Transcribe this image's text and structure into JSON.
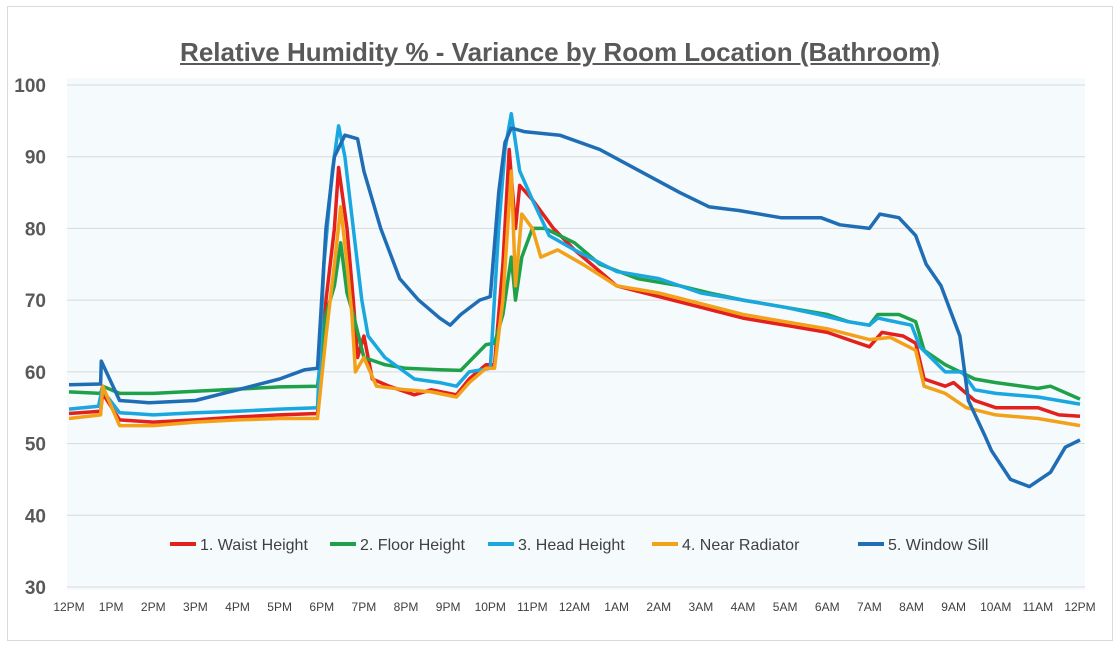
{
  "chart_data": {
    "type": "line",
    "title": "Relative Humidity % - Variance by Room Location (Bathroom)",
    "xlabel": "",
    "ylabel": "",
    "ylim": [
      30,
      100
    ],
    "yticks": [
      30,
      40,
      50,
      60,
      70,
      80,
      90,
      100
    ],
    "xticks": [
      "12PM",
      "1PM",
      "2PM",
      "3PM",
      "4PM",
      "5PM",
      "6PM",
      "7PM",
      "8PM",
      "9PM",
      "10PM",
      "11PM",
      "12AM",
      "1AM",
      "2AM",
      "3AM",
      "4AM",
      "5AM",
      "6AM",
      "7AM",
      "8AM",
      "9AM",
      "10AM",
      "11AM",
      "12PM"
    ],
    "grid": true,
    "legend_position": "bottom-inside",
    "series": [
      {
        "name": "1. Waist Height",
        "color": "#e3201b",
        "points": [
          [
            "12:00",
            54.2
          ],
          [
            "12:45",
            54.5
          ],
          [
            "12:48",
            57
          ],
          [
            "13:12",
            53.3
          ],
          [
            "14:00",
            53
          ],
          [
            "15:00",
            53.3
          ],
          [
            "16:00",
            53.7
          ],
          [
            "17:00",
            54
          ],
          [
            "17:54",
            54.2
          ],
          [
            "18:06",
            70
          ],
          [
            "18:18",
            80
          ],
          [
            "18:24",
            88.5
          ],
          [
            "18:36",
            80
          ],
          [
            "18:45",
            70
          ],
          [
            "18:51",
            62
          ],
          [
            "19:00",
            65
          ],
          [
            "19:12",
            59
          ],
          [
            "19:36",
            58
          ],
          [
            "20:12",
            56.8
          ],
          [
            "20:36",
            57.5
          ],
          [
            "21:12",
            56.8
          ],
          [
            "21:30",
            59
          ],
          [
            "21:54",
            61
          ],
          [
            "22:06",
            61
          ],
          [
            "22:18",
            75
          ],
          [
            "22:27",
            91
          ],
          [
            "22:36",
            80
          ],
          [
            "22:42",
            86
          ],
          [
            "23:00",
            84
          ],
          [
            "23:30",
            80
          ],
          [
            "00:00",
            77
          ],
          [
            "01:00",
            72
          ],
          [
            "02:00",
            70.5
          ],
          [
            "03:00",
            69
          ],
          [
            "04:00",
            67.5
          ],
          [
            "05:00",
            66.5
          ],
          [
            "06:00",
            65.5
          ],
          [
            "06:30",
            64.5
          ],
          [
            "07:00",
            63.5
          ],
          [
            "07:18",
            65.5
          ],
          [
            "07:48",
            65
          ],
          [
            "08:06",
            64
          ],
          [
            "08:18",
            59
          ],
          [
            "08:48",
            58
          ],
          [
            "09:00",
            58.5
          ],
          [
            "09:30",
            56
          ],
          [
            "10:00",
            55
          ],
          [
            "11:00",
            55
          ],
          [
            "11:30",
            54
          ],
          [
            "12:00",
            53.8
          ]
        ]
      },
      {
        "name": "2. Floor Height",
        "color": "#1fa14a",
        "points": [
          [
            "12:00",
            57.2
          ],
          [
            "12:45",
            57
          ],
          [
            "12:48",
            58
          ],
          [
            "13:12",
            57
          ],
          [
            "14:00",
            57
          ],
          [
            "15:00",
            57.3
          ],
          [
            "16:00",
            57.6
          ],
          [
            "17:00",
            57.9
          ],
          [
            "17:54",
            58
          ],
          [
            "18:06",
            68
          ],
          [
            "18:18",
            72
          ],
          [
            "18:27",
            78
          ],
          [
            "18:36",
            71
          ],
          [
            "18:45",
            68
          ],
          [
            "19:00",
            62
          ],
          [
            "19:30",
            61
          ],
          [
            "20:00",
            60.5
          ],
          [
            "20:48",
            60.3
          ],
          [
            "21:18",
            60.2
          ],
          [
            "21:36",
            62
          ],
          [
            "21:54",
            63.8
          ],
          [
            "22:06",
            64
          ],
          [
            "22:18",
            68
          ],
          [
            "22:30",
            76
          ],
          [
            "22:36",
            70
          ],
          [
            "22:45",
            76
          ],
          [
            "23:00",
            80
          ],
          [
            "23:18",
            80
          ],
          [
            "00:00",
            78
          ],
          [
            "00:36",
            75
          ],
          [
            "01:30",
            73
          ],
          [
            "02:30",
            72
          ],
          [
            "03:12",
            71
          ],
          [
            "04:00",
            70
          ],
          [
            "05:00",
            69
          ],
          [
            "06:00",
            68
          ],
          [
            "06:30",
            67
          ],
          [
            "07:00",
            66.5
          ],
          [
            "07:12",
            68
          ],
          [
            "07:42",
            68
          ],
          [
            "08:06",
            67
          ],
          [
            "08:18",
            63
          ],
          [
            "08:48",
            61
          ],
          [
            "09:30",
            59
          ],
          [
            "10:00",
            58.5
          ],
          [
            "11:00",
            57.7
          ],
          [
            "11:18",
            58
          ],
          [
            "12:00",
            56.2
          ]
        ]
      },
      {
        "name": "3. Head Height",
        "color": "#1aa7e0",
        "points": [
          [
            "12:00",
            54.8
          ],
          [
            "12:42",
            55.2
          ],
          [
            "12:47",
            57.5
          ],
          [
            "13:12",
            54.3
          ],
          [
            "14:00",
            54
          ],
          [
            "15:00",
            54.3
          ],
          [
            "16:00",
            54.5
          ],
          [
            "17:00",
            54.8
          ],
          [
            "17:54",
            55
          ],
          [
            "18:03",
            75
          ],
          [
            "18:15",
            88
          ],
          [
            "18:24",
            94.3
          ],
          [
            "18:33",
            90
          ],
          [
            "18:45",
            80
          ],
          [
            "18:57",
            70
          ],
          [
            "19:06",
            65
          ],
          [
            "19:30",
            62
          ],
          [
            "20:12",
            59
          ],
          [
            "20:48",
            58.5
          ],
          [
            "21:12",
            58
          ],
          [
            "21:30",
            60
          ],
          [
            "22:00",
            60.5
          ],
          [
            "22:12",
            80
          ],
          [
            "22:21",
            91
          ],
          [
            "22:30",
            96
          ],
          [
            "22:42",
            88
          ],
          [
            "23:00",
            84
          ],
          [
            "23:24",
            79
          ],
          [
            "00:00",
            77
          ],
          [
            "01:00",
            74
          ],
          [
            "02:00",
            73
          ],
          [
            "03:00",
            71
          ],
          [
            "04:00",
            70
          ],
          [
            "05:00",
            69
          ],
          [
            "05:48",
            68
          ],
          [
            "06:30",
            67
          ],
          [
            "07:00",
            66.5
          ],
          [
            "07:12",
            67.5
          ],
          [
            "08:00",
            66.5
          ],
          [
            "08:12",
            63.5
          ],
          [
            "08:48",
            60
          ],
          [
            "09:12",
            60
          ],
          [
            "09:30",
            57.5
          ],
          [
            "10:00",
            57
          ],
          [
            "11:00",
            56.5
          ],
          [
            "12:00",
            55.5
          ]
        ]
      },
      {
        "name": "4. Near Radiator",
        "color": "#f4a11a",
        "points": [
          [
            "12:00",
            53.5
          ],
          [
            "12:45",
            54
          ],
          [
            "12:48",
            58
          ],
          [
            "13:12",
            52.5
          ],
          [
            "14:00",
            52.5
          ],
          [
            "15:00",
            53
          ],
          [
            "16:00",
            53.3
          ],
          [
            "17:00",
            53.5
          ],
          [
            "17:54",
            53.5
          ],
          [
            "18:06",
            65
          ],
          [
            "18:18",
            75
          ],
          [
            "18:27",
            83
          ],
          [
            "18:36",
            75
          ],
          [
            "18:43",
            68
          ],
          [
            "18:48",
            60
          ],
          [
            "19:00",
            62
          ],
          [
            "19:18",
            58
          ],
          [
            "20:00",
            57.5
          ],
          [
            "20:36",
            57.2
          ],
          [
            "21:12",
            56.5
          ],
          [
            "21:30",
            58.5
          ],
          [
            "21:54",
            60.5
          ],
          [
            "22:06",
            60.5
          ],
          [
            "22:18",
            70
          ],
          [
            "22:30",
            88
          ],
          [
            "22:36",
            72
          ],
          [
            "22:45",
            82
          ],
          [
            "23:00",
            80
          ],
          [
            "23:12",
            76
          ],
          [
            "23:36",
            77
          ],
          [
            "00:12",
            75
          ],
          [
            "01:00",
            72
          ],
          [
            "02:00",
            71
          ],
          [
            "03:00",
            69.5
          ],
          [
            "04:00",
            68
          ],
          [
            "05:00",
            67
          ],
          [
            "06:00",
            66
          ],
          [
            "07:00",
            64.5
          ],
          [
            "07:30",
            64.8
          ],
          [
            "08:06",
            63
          ],
          [
            "08:18",
            58
          ],
          [
            "08:48",
            57
          ],
          [
            "09:18",
            55
          ],
          [
            "10:00",
            54
          ],
          [
            "11:00",
            53.5
          ],
          [
            "12:00",
            52.5
          ]
        ]
      },
      {
        "name": "5. Window Sill",
        "color": "#1f6db5",
        "points": [
          [
            "12:00",
            58.2
          ],
          [
            "12:45",
            58.3
          ],
          [
            "12:46",
            61.5
          ],
          [
            "13:12",
            56
          ],
          [
            "13:54",
            55.7
          ],
          [
            "15:00",
            56
          ],
          [
            "16:00",
            57.5
          ],
          [
            "17:00",
            59
          ],
          [
            "17:36",
            60.3
          ],
          [
            "17:54",
            60.5
          ],
          [
            "18:06",
            80
          ],
          [
            "18:18",
            90
          ],
          [
            "18:33",
            93
          ],
          [
            "18:51",
            92.5
          ],
          [
            "19:00",
            88
          ],
          [
            "19:24",
            80
          ],
          [
            "19:51",
            73
          ],
          [
            "20:18",
            70
          ],
          [
            "20:48",
            67.5
          ],
          [
            "21:03",
            66.5
          ],
          [
            "21:18",
            68
          ],
          [
            "21:45",
            70
          ],
          [
            "22:00",
            70.5
          ],
          [
            "22:12",
            85
          ],
          [
            "22:21",
            92
          ],
          [
            "22:30",
            94
          ],
          [
            "22:48",
            93.5
          ],
          [
            "23:39",
            93
          ],
          [
            "00:36",
            91
          ],
          [
            "01:33",
            88
          ],
          [
            "02:30",
            85
          ],
          [
            "03:12",
            83
          ],
          [
            "03:54",
            82.5
          ],
          [
            "04:54",
            81.5
          ],
          [
            "05:51",
            81.5
          ],
          [
            "06:18",
            80.5
          ],
          [
            "07:00",
            80
          ],
          [
            "07:15",
            82
          ],
          [
            "07:42",
            81.5
          ],
          [
            "08:06",
            79
          ],
          [
            "08:21",
            75
          ],
          [
            "08:42",
            72
          ],
          [
            "09:09",
            65
          ],
          [
            "09:21",
            56
          ],
          [
            "09:45",
            51
          ],
          [
            "09:54",
            49
          ],
          [
            "10:21",
            45
          ],
          [
            "10:48",
            44
          ],
          [
            "11:18",
            46
          ],
          [
            "11:39",
            49.5
          ],
          [
            "12:00",
            50.5
          ]
        ]
      }
    ]
  }
}
